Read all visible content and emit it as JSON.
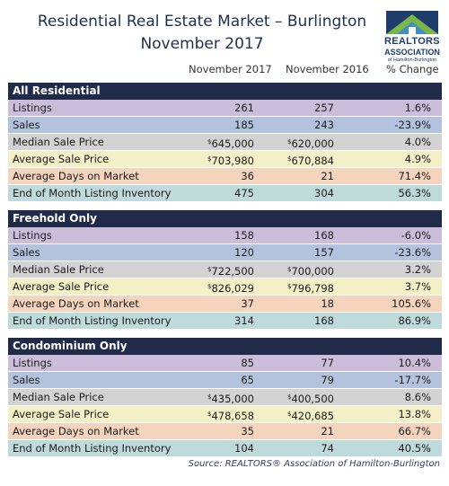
{
  "header": {
    "title_line1": "Residential Real Estate Market – Burlington",
    "title_line2": "November 2017"
  },
  "logo": {
    "line1": "REALTORS",
    "line2": "ASSOCIATION",
    "line3": "of Hamilton-Burlington",
    "colors": [
      "#7ab648",
      "#3f8fc5",
      "#1f3d6b"
    ]
  },
  "columns": {
    "col1": "November 2017",
    "col2": "November 2016",
    "col3": "% Change"
  },
  "sections": [
    {
      "title": "All Residential",
      "rows": [
        {
          "label": "Listings",
          "v1": "261",
          "v2": "257",
          "pct": "1.6%"
        },
        {
          "label": "Sales",
          "v1": "185",
          "v2": "243",
          "pct": "-23.9%"
        },
        {
          "label": "Median Sale Price",
          "cur": "$",
          "v1": "645,000",
          "v2": "620,000",
          "pct": "4.0%"
        },
        {
          "label": "Average Sale Price",
          "cur": "$",
          "v1": "703,980",
          "v2": "670,884",
          "pct": "4.9%"
        },
        {
          "label": "Average Days on Market",
          "v1": "36",
          "v2": "21",
          "pct": "71.4%"
        },
        {
          "label": "End of Month Listing Inventory",
          "v1": "475",
          "v2": "304",
          "pct": "56.3%"
        }
      ]
    },
    {
      "title": "Freehold Only",
      "rows": [
        {
          "label": "Listings",
          "v1": "158",
          "v2": "168",
          "pct": "-6.0%"
        },
        {
          "label": "Sales",
          "v1": "120",
          "v2": "157",
          "pct": "-23.6%"
        },
        {
          "label": "Median Sale Price",
          "cur": "$",
          "v1": "722,500",
          "v2": "700,000",
          "pct": "3.2%"
        },
        {
          "label": "Average Sale Price",
          "cur": "$",
          "v1": "826,029",
          "v2": "796,798",
          "pct": "3.7%"
        },
        {
          "label": "Average Days on Market",
          "v1": "37",
          "v2": "18",
          "pct": "105.6%"
        },
        {
          "label": "End of Month Listing Inventory",
          "v1": "314",
          "v2": "168",
          "pct": "86.9%"
        }
      ]
    },
    {
      "title": "Condominium Only",
      "rows": [
        {
          "label": "Listings",
          "v1": "85",
          "v2": "77",
          "pct": "10.4%"
        },
        {
          "label": "Sales",
          "v1": "65",
          "v2": "79",
          "pct": "-17.7%"
        },
        {
          "label": "Median Sale Price",
          "cur": "$",
          "v1": "435,000",
          "v2": "400,500",
          "pct": "8.6%"
        },
        {
          "label": "Average Sale Price",
          "cur": "$",
          "v1": "478,658",
          "v2": "420,685",
          "pct": "13.8%"
        },
        {
          "label": "Average Days on Market",
          "v1": "35",
          "v2": "21",
          "pct": "66.7%"
        },
        {
          "label": "End of Month Listing Inventory",
          "v1": "104",
          "v2": "74",
          "pct": "40.5%"
        }
      ]
    }
  ],
  "source": "Source:  REALTORS® Association of Hamilton-Burlington",
  "row_colors": [
    "#ccbedb",
    "#b3c3dd",
    "#d3d3d3",
    "#f3f0c8",
    "#f5d4be",
    "#bfdadb"
  ],
  "header_color": "#1f2b49"
}
